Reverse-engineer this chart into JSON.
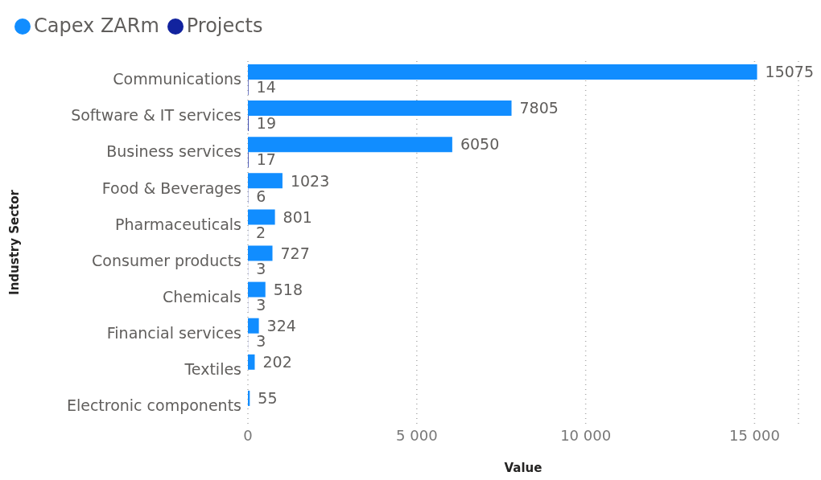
{
  "chart_data": {
    "type": "bar",
    "orientation": "horizontal",
    "xlabel": "Value",
    "ylabel": "Industry Sector",
    "categories": [
      "Communications",
      "Software & IT services",
      "Business services",
      "Food & Beverages",
      "Pharmaceuticals",
      "Consumer products",
      "Chemicals",
      "Financial services",
      "Textiles",
      "Electronic components"
    ],
    "series": [
      {
        "name": "Capex ZARm",
        "color": "#118dff",
        "values": [
          15075,
          7805,
          6050,
          1023,
          801,
          727,
          518,
          324,
          202,
          55
        ],
        "value_labels": [
          "15075",
          "7805",
          "6050",
          "1023",
          "801",
          "727",
          "518",
          "324",
          "202",
          "55"
        ]
      },
      {
        "name": "Projects",
        "color": "#12239e",
        "values": [
          14,
          19,
          17,
          6,
          2,
          3,
          3,
          3,
          null,
          null
        ],
        "value_labels": [
          "14",
          "19",
          "17",
          "6",
          "2",
          "3",
          "3",
          "3",
          null,
          null
        ]
      }
    ],
    "xlim": [
      0,
      16300
    ],
    "xticks": [
      {
        "value": 0,
        "label": "0"
      },
      {
        "value": 5000,
        "label": "5 000"
      },
      {
        "value": 10000,
        "label": "10 000"
      },
      {
        "value": 15000,
        "label": "15 000"
      }
    ],
    "grid": "x",
    "legend": "top left"
  }
}
